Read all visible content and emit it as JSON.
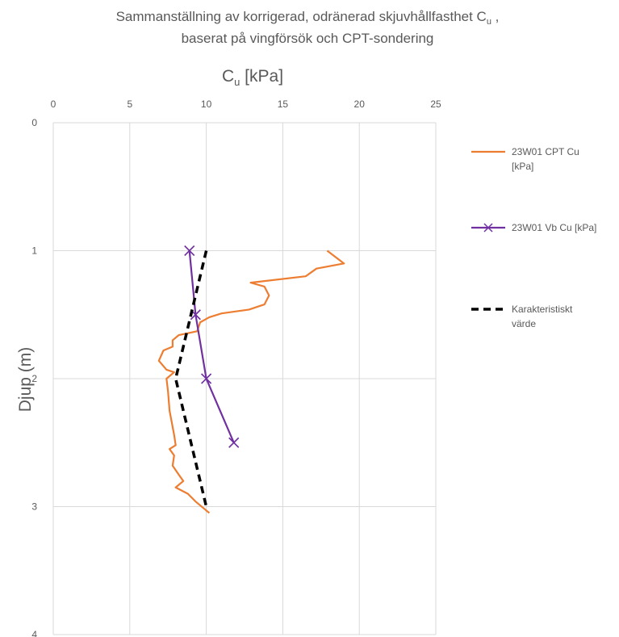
{
  "chart_data": {
    "type": "line",
    "title_line1": "Sammanställning av korrigerad, odränerad skjuvhållfasthet C",
    "title_line1_sub": "u",
    "title_line1_end": " ,",
    "title_line2": "baserat på vingförsök och CPT-sondering",
    "xlabel_main": "C",
    "xlabel_sub": "u",
    "xlabel_unit": " [kPa]",
    "ylabel": "Djup (m)",
    "xlim": [
      0,
      25
    ],
    "ylim": [
      0,
      4
    ],
    "y_inverted": true,
    "x_axis_position": "top",
    "x_ticks": [
      "0",
      "5",
      "10",
      "15",
      "20",
      "25"
    ],
    "y_ticks": [
      "0",
      "1",
      "2",
      "3",
      "4"
    ],
    "grid": true,
    "legend_position": "right",
    "series": [
      {
        "name": "23W01 CPT Cu",
        "name_line2": "[kPa]",
        "color": "#ED7D31",
        "marker": "none",
        "dash": "solid",
        "points": [
          [
            17.9,
            1.0
          ],
          [
            19.0,
            1.1
          ],
          [
            17.2,
            1.14
          ],
          [
            16.5,
            1.2
          ],
          [
            12.9,
            1.25
          ],
          [
            13.8,
            1.28
          ],
          [
            14.1,
            1.35
          ],
          [
            13.8,
            1.42
          ],
          [
            12.8,
            1.46
          ],
          [
            11.0,
            1.49
          ],
          [
            10.2,
            1.52
          ],
          [
            9.6,
            1.56
          ],
          [
            9.4,
            1.63
          ],
          [
            8.2,
            1.66
          ],
          [
            7.8,
            1.7
          ],
          [
            7.8,
            1.75
          ],
          [
            7.2,
            1.78
          ],
          [
            6.9,
            1.86
          ],
          [
            7.4,
            1.93
          ],
          [
            7.9,
            1.95
          ],
          [
            7.4,
            2.0
          ],
          [
            7.5,
            2.1
          ],
          [
            7.6,
            2.25
          ],
          [
            7.9,
            2.44
          ],
          [
            8.0,
            2.52
          ],
          [
            7.6,
            2.55
          ],
          [
            7.9,
            2.6
          ],
          [
            7.8,
            2.68
          ],
          [
            8.2,
            2.75
          ],
          [
            8.5,
            2.8
          ],
          [
            8.0,
            2.85
          ],
          [
            8.8,
            2.9
          ],
          [
            9.3,
            2.96
          ],
          [
            10.2,
            3.05
          ]
        ]
      },
      {
        "name": "23W01 Vb Cu [kPa]",
        "name_line2": "",
        "color": "#7030A0",
        "marker": "x",
        "dash": "solid",
        "points": [
          [
            8.9,
            1.0
          ],
          [
            9.3,
            1.5
          ],
          [
            10.0,
            2.0
          ],
          [
            11.8,
            2.5
          ]
        ]
      },
      {
        "name": "Karakteristiskt",
        "name_line2": "värde",
        "color": "#000000",
        "marker": "none",
        "dash": "dashed",
        "points": [
          [
            10.0,
            1.0
          ],
          [
            8.0,
            2.0
          ],
          [
            10.0,
            3.0
          ]
        ]
      }
    ]
  }
}
